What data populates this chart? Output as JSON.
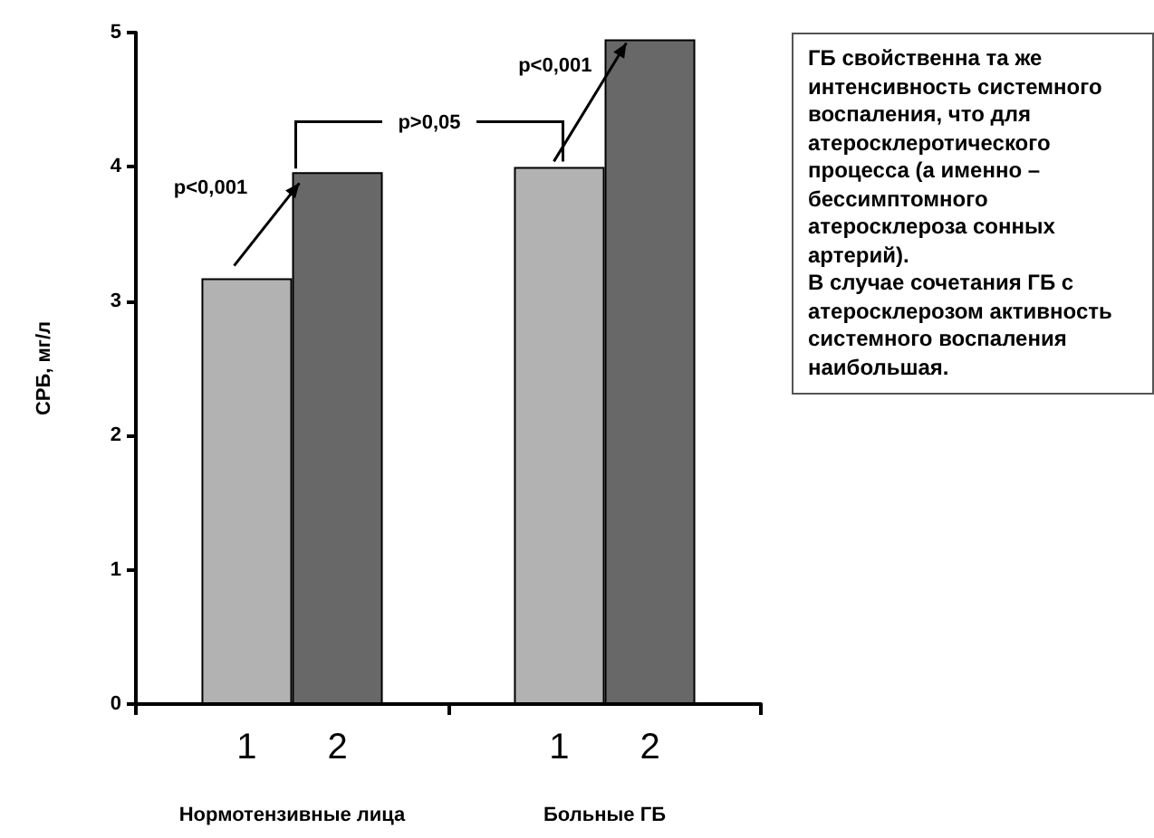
{
  "chart_data": {
    "type": "bar",
    "ylabel": "СРБ, мг/л",
    "categories": [
      "Нормотензивные лица",
      "Больные ГБ"
    ],
    "series": [
      {
        "name": "1",
        "color": "#b2b2b2",
        "values": [
          3.17,
          4.0
        ]
      },
      {
        "name": "2",
        "color": "#686868",
        "values": [
          3.96,
          4.95
        ]
      }
    ],
    "ylim": [
      0,
      5
    ],
    "yticks": [
      0,
      1,
      2,
      3,
      4,
      5
    ],
    "legend": false,
    "grid": false,
    "annotations": [
      {
        "text": "p<0,001",
        "x": "Нормотензивные лица",
        "y": 3.96
      },
      "p>0,05",
      {
        "text": "p<0,001",
        "x": "Больные ГБ",
        "y": 4.95
      },
      "ГБ свойственна та же интенсивность системного воспаления, что для атеросклеротического процесса (а именно – бессимптомного атеросклероза сонных артерий).\nВ случае сочетания ГБ с атеросклерозом активность системного воспаления наибольшая."
    ]
  }
}
